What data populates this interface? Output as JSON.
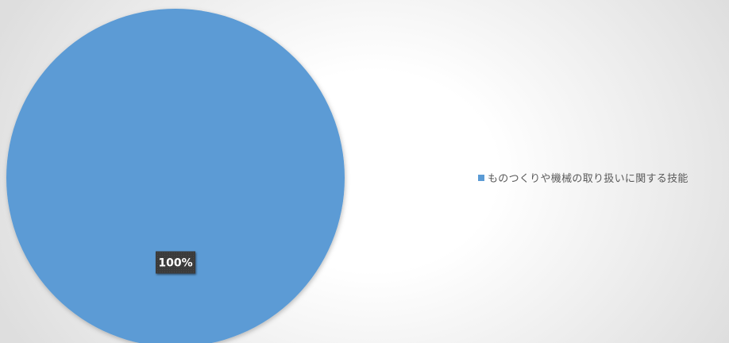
{
  "chart_data": {
    "type": "pie",
    "categories": [
      "ものつくりや機械の取り扱いに関する技能"
    ],
    "values": [
      100
    ],
    "data_labels": [
      "100%"
    ],
    "colors": [
      "#5b9bd5"
    ],
    "legend_position": "right"
  }
}
